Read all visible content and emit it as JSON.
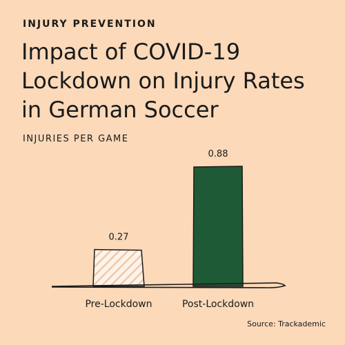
{
  "kicker": "INJURY PREVENTION",
  "title": "Impact of COVID-19 Lockdown on Injury Rates in German Soccer",
  "source": "Source: Trackademic",
  "colors": {
    "background": "#fbd9b9",
    "pre_bar_hatch": "#f0c8a8",
    "post_bar": "#1f5a37",
    "ink": "#1a1a1a"
  },
  "chart_data": {
    "type": "bar",
    "title": "Impact of COVID-19 Lockdown on Injury Rates in German Soccer",
    "ylabel": "INJURIES PER GAME",
    "xlabel": "",
    "categories": [
      "Pre-Lockdown",
      "Post-Lockdown"
    ],
    "values": [
      0.27,
      0.88
    ],
    "value_labels": [
      "0.27",
      "0.88"
    ],
    "ylim": [
      0,
      0.88
    ],
    "grid": false,
    "legend": "none"
  }
}
